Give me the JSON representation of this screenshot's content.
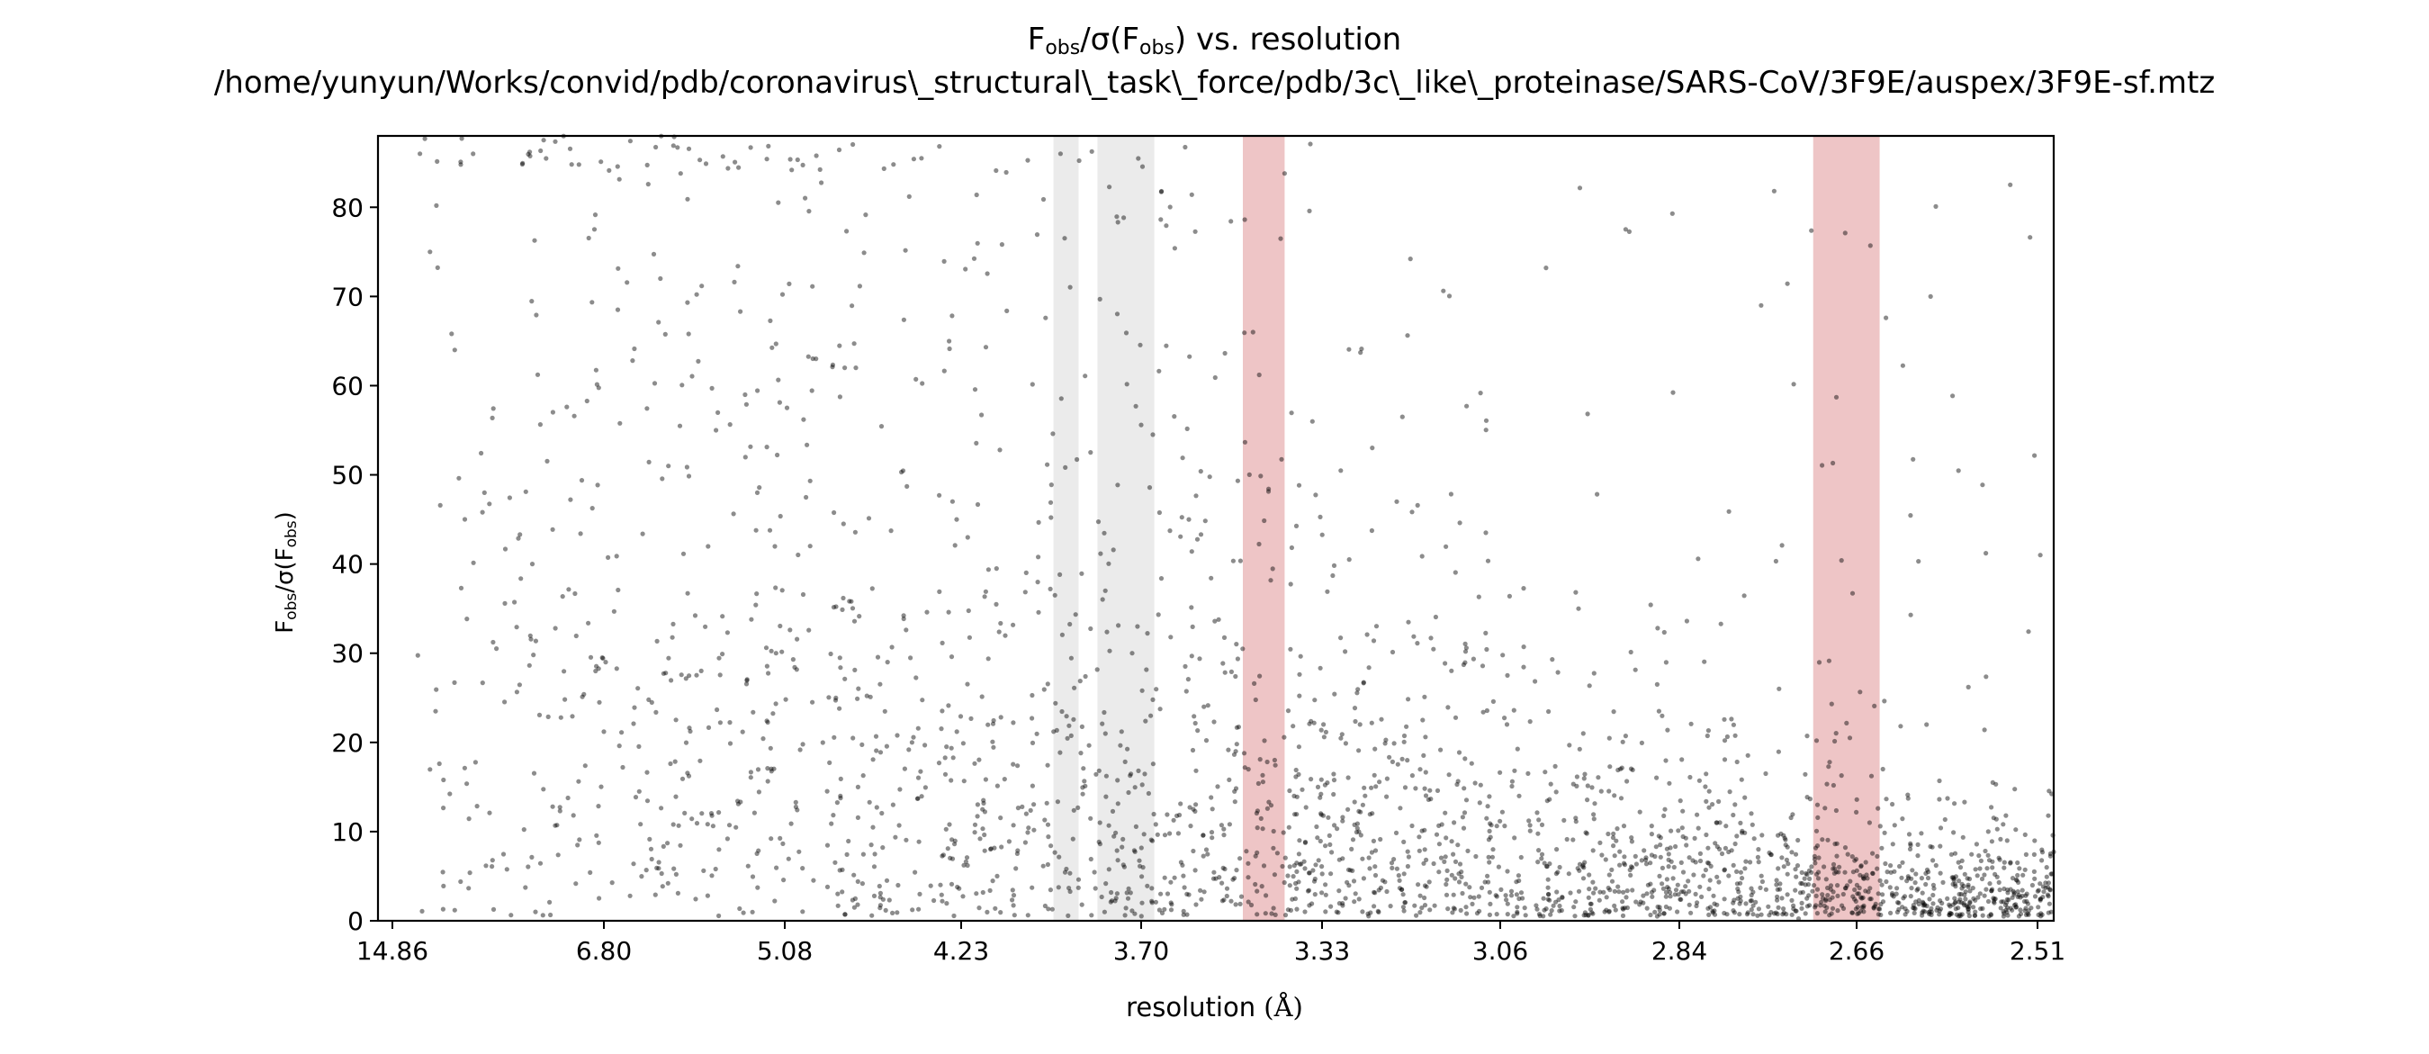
{
  "chart_data": {
    "type": "scatter",
    "title_parts": [
      "F",
      "obs",
      "/σ(F",
      "obs",
      ") vs. resolution"
    ],
    "subtitle": "/home/yunyun/Works/convid/pdb/coronavirus\\_structural\\_task\\_force/pdb/3c\\_like\\_proteinase/SARS-CoV/3F9E/auspex/3F9E-sf.mtz",
    "xlabel": "resolution",
    "xlabel_unit": "(Å)",
    "ylabel_parts": [
      "F",
      "obs",
      "/σ(F",
      "obs",
      ")"
    ],
    "x_scale": "inverse-square resolution (1/d²)",
    "xlim": [
      32.0,
      2.5
    ],
    "ylim": [
      0,
      88
    ],
    "grid": false,
    "x_tick_labels": [
      "14.86",
      "6.80",
      "5.08",
      "4.23",
      "3.70",
      "3.33",
      "3.06",
      "2.84",
      "2.66",
      "2.51"
    ],
    "y_ticks": [
      0,
      10,
      20,
      30,
      40,
      50,
      60,
      70,
      80
    ],
    "highlight_bands": [
      {
        "kind": "ice-ring-gray",
        "color": "#ebebeb",
        "d_range": [
          3.92,
          3.85
        ]
      },
      {
        "kind": "ice-ring-gray",
        "color": "#ebebeb",
        "d_range": [
          3.8,
          3.66
        ]
      },
      {
        "kind": "ice-ring-red",
        "color": "#eec5c6",
        "d_range": [
          3.47,
          3.39
        ]
      },
      {
        "kind": "ice-ring-red",
        "color": "#eec5c6",
        "d_range": [
          2.7,
          2.64
        ]
      }
    ],
    "series": [
      {
        "marker_color": "#000000",
        "marker_opacity": 0.45,
        "description_of_distribution": "dense reflections at low F/σ across all resolutions, spread to ~88 at low resolution, concentrating below 20 at high resolution",
        "sample_points": [
          {
            "d": 14.2,
            "y": 86
          },
          {
            "d": 13.0,
            "y": 75
          },
          {
            "d": 11.0,
            "y": 64
          },
          {
            "d": 9.5,
            "y": 48
          },
          {
            "d": 8.0,
            "y": 40
          },
          {
            "d": 6.8,
            "y": 28
          },
          {
            "d": 6.0,
            "y": 72
          },
          {
            "d": 5.5,
            "y": 55
          },
          {
            "d": 5.08,
            "y": 30
          },
          {
            "d": 4.7,
            "y": 62
          },
          {
            "d": 4.4,
            "y": 20
          },
          {
            "d": 4.23,
            "y": 45
          },
          {
            "d": 4.0,
            "y": 12
          },
          {
            "d": 3.9,
            "y": 86
          },
          {
            "d": 3.7,
            "y": 33
          },
          {
            "d": 3.55,
            "y": 24
          },
          {
            "d": 3.45,
            "y": 66
          },
          {
            "d": 3.33,
            "y": 15
          },
          {
            "d": 3.2,
            "y": 47
          },
          {
            "d": 3.06,
            "y": 8
          },
          {
            "d": 2.95,
            "y": 35
          },
          {
            "d": 2.84,
            "y": 6
          },
          {
            "d": 2.75,
            "y": 69
          },
          {
            "d": 2.66,
            "y": 4
          },
          {
            "d": 2.6,
            "y": 22
          },
          {
            "d": 2.55,
            "y": 10
          },
          {
            "d": 2.51,
            "y": 41
          }
        ]
      }
    ]
  }
}
